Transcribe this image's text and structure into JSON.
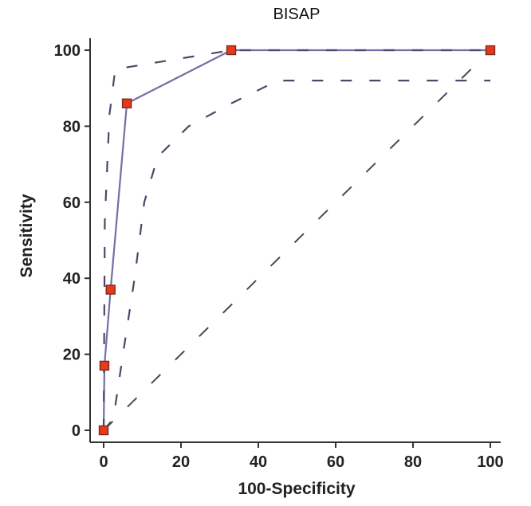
{
  "chart_data": {
    "type": "line",
    "title": "BISAP",
    "xlabel": "100-Specificity",
    "ylabel": "Sensitivity",
    "xlim": [
      0,
      100
    ],
    "ylim": [
      0,
      100
    ],
    "x_ticks": [
      "0",
      "20",
      "40",
      "60",
      "80",
      "100"
    ],
    "y_ticks": [
      "0",
      "20",
      "40",
      "60",
      "80",
      "100"
    ],
    "grid": false,
    "legend": "none",
    "series": [
      {
        "role": "roc-curve",
        "style": "solid-with-markers",
        "color": "#7070a8",
        "marker_color": "#e8381e",
        "x": [
          0,
          0.2,
          1.8,
          6,
          33,
          100
        ],
        "y": [
          0,
          17,
          37,
          86,
          100,
          100
        ]
      },
      {
        "role": "upper-confidence-bound",
        "style": "dashed",
        "color": "#4a4a68",
        "x": [
          0,
          0.3,
          1.5,
          3,
          33,
          100
        ],
        "y": [
          0,
          55,
          83,
          95,
          100,
          100
        ]
      },
      {
        "role": "lower-confidence-bound",
        "style": "dashed",
        "color": "#4a4a68",
        "x": [
          0,
          2.5,
          5,
          8,
          10.5,
          14,
          22,
          33,
          45,
          100
        ],
        "y": [
          0,
          3,
          20,
          40,
          60,
          72,
          80,
          86,
          92,
          92
        ]
      },
      {
        "role": "reference-diagonal",
        "style": "dashed",
        "color": "#4a4a55",
        "x": [
          0,
          100
        ],
        "y": [
          0,
          100
        ]
      }
    ]
  }
}
